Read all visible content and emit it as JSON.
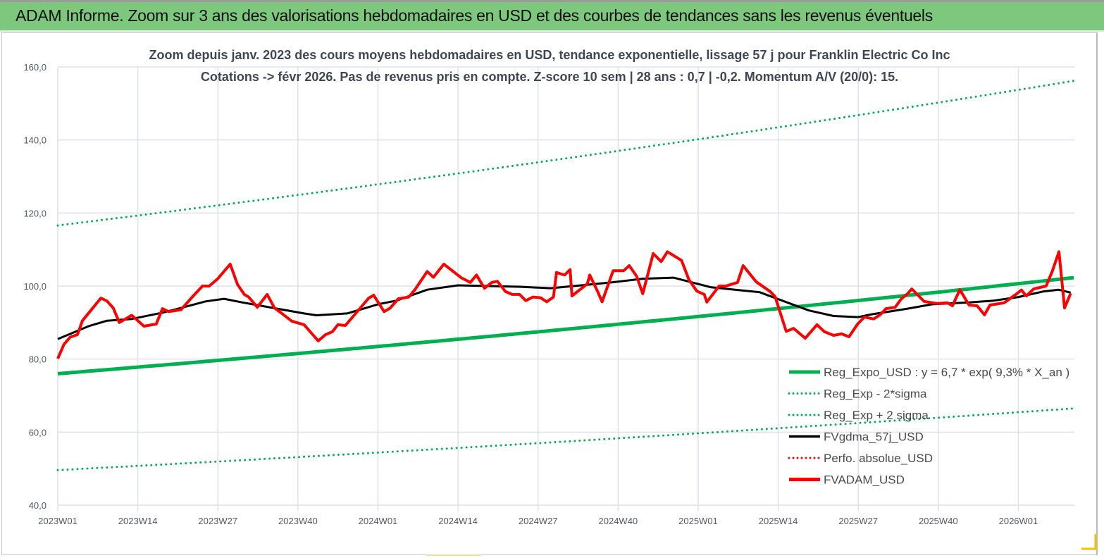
{
  "header": {
    "title": "ADAM Informe. Zoom sur 3 ans des valorisations hebdomadaires en USD et des courbes de tendances sans les revenus éventuels"
  },
  "chart_data": {
    "type": "line",
    "title": "Zoom depuis janv. 2023 des cours moyens hebdomadaires en USD, tendance exponentielle, lissage 57 j pour Franklin Electric Co Inc",
    "subtitle": "Cotations -> févr 2026.  Pas de revenus pris en compte. Z-score 10 sem | 28 ans : 0,7 | -0,2. Momentum A/V (20/0): 15.",
    "xlabel": "",
    "ylabel": "",
    "ylim": [
      40,
      160
    ],
    "xlim_weeks": [
      0,
      165
    ],
    "y_ticks": [
      "40,0",
      "60,0",
      "80,0",
      "100,0",
      "120,0",
      "140,0",
      "160,0"
    ],
    "y_tick_values": [
      40,
      60,
      80,
      100,
      120,
      140,
      160
    ],
    "x_ticks": [
      "2023W01",
      "2023W14",
      "2023W27",
      "2023W40",
      "2024W01",
      "2024W14",
      "2024W27",
      "2024W40",
      "2025W01",
      "2025W14",
      "2025W27",
      "2025W40",
      "2026W01"
    ],
    "x_tick_weeks": [
      0,
      13,
      26,
      39,
      52,
      65,
      78,
      91,
      104,
      117,
      130,
      143,
      156
    ],
    "grid": true,
    "legend_position": "bottom-right",
    "series": [
      {
        "name": "Reg_Expo_USD : y = 6,7 * exp( 9,3% *  X_an )",
        "style": "solid",
        "color": "#00b050",
        "width": 5,
        "x": [
          0,
          165
        ],
        "y": [
          76.0,
          102.3
        ],
        "exponential": true
      },
      {
        "name": "Reg_Exp - 2*sigma",
        "style": "dotted",
        "color": "#00b050",
        "width": 3,
        "x": [
          0,
          165
        ],
        "y": [
          49.6,
          66.5
        ],
        "exponential": true
      },
      {
        "name": "Reg_Exp + 2 sigma",
        "style": "dotted",
        "color": "#00b050",
        "width": 3,
        "x": [
          0,
          165
        ],
        "y": [
          116.6,
          156.2
        ],
        "exponential": true
      },
      {
        "name": "FVgdma_57j_USD",
        "style": "solid",
        "color": "#000000",
        "width": 3,
        "x": [
          0,
          5,
          8,
          12,
          17,
          20,
          24,
          27,
          30,
          35,
          40,
          42,
          47,
          52,
          55,
          60,
          65,
          75,
          80,
          85,
          90,
          95,
          100,
          103,
          106,
          110,
          114,
          118,
          122,
          126,
          130,
          132,
          138,
          142,
          148,
          152,
          156,
          160,
          162.5,
          164.5
        ],
        "y": [
          85.5,
          89,
          90.5,
          91,
          92.7,
          94,
          95.8,
          96.5,
          95.5,
          94,
          92.5,
          92,
          92.5,
          95,
          96,
          99,
          100.2,
          99.8,
          99.4,
          100.2,
          101,
          102,
          102.3,
          101,
          99.7,
          99,
          98.3,
          95.8,
          93.3,
          91.8,
          91.5,
          92.2,
          93.8,
          95,
          95.5,
          96,
          97,
          98.5,
          99,
          98.2
        ]
      },
      {
        "name": "Perfo. absolue_USD",
        "style": "dotted",
        "color": "#ff0000",
        "width": 2,
        "x": [],
        "y": []
      },
      {
        "name": "FVADAM_USD",
        "style": "solid",
        "color": "#ff0000",
        "width": 4,
        "x": [
          0,
          1,
          2,
          3.2,
          4,
          7,
          8,
          9,
          10,
          11,
          12,
          14,
          16,
          17,
          18,
          20,
          22,
          23.5,
          24.6,
          26,
          28,
          29.2,
          30.3,
          31,
          32.4,
          34,
          35.2,
          36.4,
          38,
          40,
          42.3,
          43.5,
          44.6,
          45.5,
          46.7,
          50.5,
          51.3,
          53,
          54,
          55.3,
          57,
          58,
          60,
          61,
          62.7,
          65.5,
          67,
          68,
          69.3,
          70.5,
          71.4,
          72.7,
          73.8,
          75,
          76,
          77.2,
          78.4,
          79.4,
          80.5,
          81,
          82.3,
          83.2,
          83.5,
          86,
          86.4,
          87.6,
          88.4,
          90.2,
          91.9,
          92.8,
          94,
          95,
          96.7,
          98,
          99,
          101.3,
          102.5,
          103.8,
          105,
          105.4,
          107.4,
          108.5,
          110.4,
          111.3,
          113.4,
          115.7,
          116.5,
          118.3,
          119.5,
          121.4,
          123.3,
          124.5,
          126,
          127.3,
          128.5,
          129.9,
          131,
          132.5,
          133.6,
          134.5,
          136,
          137,
          138,
          138.7,
          140.7,
          142.8,
          144.5,
          145.3,
          146.5,
          148,
          149.3,
          150.5,
          151.4,
          153.7,
          155.6,
          156.5,
          157.3,
          158.5,
          160.5,
          161.5,
          162.6,
          163.5,
          164.5
        ],
        "y": [
          80.1,
          84,
          86,
          86.7,
          90.5,
          96.7,
          95.9,
          94,
          90,
          91,
          92,
          89,
          89.6,
          93.8,
          93,
          93.5,
          97.3,
          100,
          100,
          102,
          106,
          100.4,
          97.7,
          97,
          94.2,
          97.7,
          94,
          92.5,
          90.4,
          89.4,
          85,
          86.7,
          87.5,
          89.4,
          89.2,
          96.7,
          97.5,
          93,
          94,
          96.5,
          97,
          99,
          104,
          102.4,
          106,
          102.3,
          101,
          103,
          99.4,
          101,
          101.3,
          98.5,
          97.7,
          97.7,
          96,
          97,
          96.8,
          95.7,
          97,
          103.7,
          103,
          104.5,
          97.3,
          100.6,
          103,
          98.8,
          95.7,
          104.2,
          104.2,
          105.6,
          102.7,
          97.9,
          108.9,
          106.7,
          109.4,
          107,
          101.7,
          98.6,
          97.7,
          95.6,
          100,
          100,
          101,
          105.6,
          101.2,
          98.5,
          97.1,
          87.6,
          88.4,
          85.7,
          89.4,
          87.5,
          86.5,
          86.9,
          86.1,
          89.6,
          91.5,
          91,
          92.2,
          93.8,
          94.2,
          96.5,
          97.9,
          99.2,
          95.8,
          95.2,
          95.4,
          94.6,
          99,
          94.8,
          94.6,
          92.1,
          94.8,
          95.4,
          97.7,
          98.9,
          97.3,
          99.2,
          100,
          104,
          109.4,
          94,
          98
        ]
      }
    ]
  }
}
